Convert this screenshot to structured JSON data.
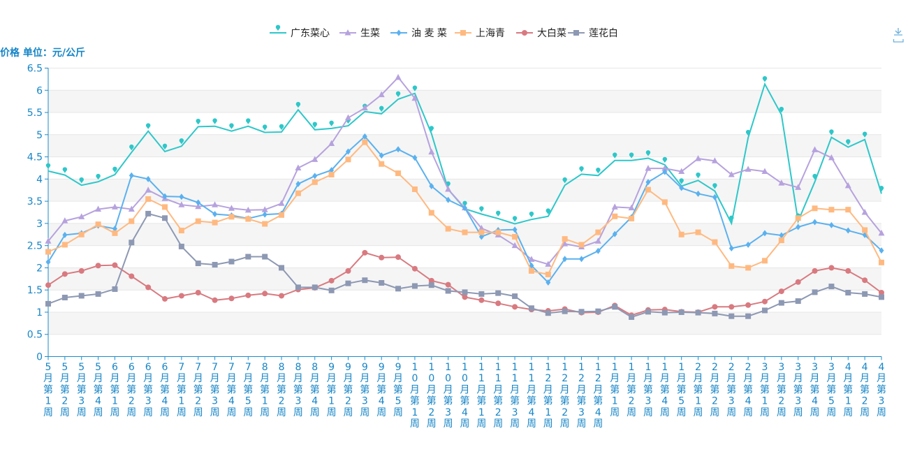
{
  "chart_data": {
    "type": "line",
    "y_unit_label": "价格 单位：元/公斤",
    "ylim": [
      0,
      6.5
    ],
    "yticks": [
      "0",
      "0.5",
      "1",
      "1.5",
      "2",
      "2.5",
      "3",
      "3.5",
      "4",
      "4.5",
      "5",
      "5.5",
      "6",
      "6.5"
    ],
    "grid": true,
    "legend_position": "top-center",
    "categories": [
      "5月第1周",
      "5月第2周",
      "5月第3周",
      "5月第4周",
      "6月第1周",
      "6月第2周",
      "6月第3周",
      "6月第4周",
      "7月第1周",
      "7月第2周",
      "7月第3周",
      "7月第4周",
      "7月第5周",
      "8月第1周",
      "8月第2周",
      "8月第3周",
      "8月第4周",
      "9月第1周",
      "9月第2周",
      "9月第3周",
      "9月第4周",
      "9月第5周",
      "10月第1周",
      "10月第2周",
      "10月第3周",
      "10月第4周",
      "11月第1周",
      "11月第2周",
      "11月第3周",
      "11月第4周",
      "12月第1周",
      "12月第2周",
      "12月第3周",
      "12月第4周",
      "1月第1周",
      "1月第2周",
      "1月第3周",
      "1月第4周",
      "1月第5周",
      "2月第1周",
      "2月第2周",
      "2月第3周",
      "2月第4周",
      "3月第1周",
      "3月第2周",
      "3月第3周",
      "3月第4周",
      "3月第5周",
      "4月第1周",
      "4月第2周",
      "4月第3周"
    ],
    "series": [
      {
        "name": "广东菜心",
        "color": "#2ec7c9",
        "marker": "pin",
        "values": [
          4.18,
          4.09,
          3.86,
          3.94,
          4.1,
          4.6,
          5.08,
          4.62,
          4.74,
          5.18,
          5.19,
          5.08,
          5.19,
          5.05,
          5.06,
          5.56,
          5.11,
          5.14,
          5.2,
          5.52,
          5.47,
          5.8,
          5.93,
          5.02,
          3.77,
          3.33,
          3.21,
          3.11,
          2.99,
          3.09,
          3.16,
          3.86,
          4.11,
          4.08,
          4.42,
          4.42,
          4.47,
          4.32,
          3.84,
          3.97,
          3.73,
          3.0,
          4.93,
          6.14,
          5.45,
          3.05,
          3.94,
          4.94,
          4.72,
          4.89,
          3.67
        ]
      },
      {
        "name": "生菜",
        "color": "#b6a2de",
        "marker": "triangle",
        "values": [
          2.6,
          3.06,
          3.15,
          3.32,
          3.37,
          3.32,
          3.75,
          3.56,
          3.42,
          3.38,
          3.42,
          3.34,
          3.3,
          3.31,
          3.45,
          4.25,
          4.44,
          4.8,
          5.38,
          5.6,
          5.9,
          6.29,
          5.82,
          4.61,
          3.77,
          3.35,
          2.89,
          2.74,
          2.5,
          2.19,
          2.08,
          2.54,
          2.47,
          2.6,
          3.37,
          3.35,
          4.24,
          4.24,
          4.17,
          4.46,
          4.41,
          4.1,
          4.22,
          4.17,
          3.91,
          3.81,
          4.66,
          4.48,
          3.85,
          3.25,
          2.78
        ]
      },
      {
        "name": "油 麦 菜",
        "color": "#5ab1ef",
        "marker": "diamond",
        "values": [
          2.13,
          2.74,
          2.78,
          2.95,
          2.88,
          4.08,
          4.0,
          3.61,
          3.6,
          3.47,
          3.21,
          3.18,
          3.11,
          3.2,
          3.22,
          3.89,
          4.07,
          4.2,
          4.62,
          4.96,
          4.53,
          4.67,
          4.48,
          3.84,
          3.53,
          3.35,
          2.7,
          2.85,
          2.86,
          2.05,
          1.67,
          2.2,
          2.2,
          2.38,
          2.76,
          3.14,
          3.93,
          4.16,
          3.8,
          3.67,
          3.59,
          2.44,
          2.52,
          2.78,
          2.73,
          2.92,
          3.03,
          2.96,
          2.84,
          2.74,
          2.39
        ]
      },
      {
        "name": "上海青",
        "color": "#ffb980",
        "marker": "square",
        "values": [
          2.36,
          2.52,
          2.75,
          2.98,
          2.78,
          3.05,
          3.55,
          3.37,
          2.84,
          3.05,
          3.02,
          3.15,
          3.1,
          2.99,
          3.19,
          3.68,
          3.93,
          4.1,
          4.44,
          4.83,
          4.34,
          4.13,
          3.77,
          3.24,
          2.88,
          2.8,
          2.8,
          2.8,
          2.7,
          1.93,
          1.85,
          2.65,
          2.52,
          2.8,
          3.16,
          3.11,
          3.76,
          3.48,
          2.75,
          2.8,
          2.58,
          2.04,
          2.0,
          2.16,
          2.62,
          3.12,
          3.34,
          3.31,
          3.31,
          2.85,
          2.12
        ]
      },
      {
        "name": "大白菜",
        "color": "#d87a80",
        "marker": "circle",
        "values": [
          1.61,
          1.86,
          1.93,
          2.05,
          2.06,
          1.81,
          1.56,
          1.3,
          1.37,
          1.44,
          1.27,
          1.31,
          1.38,
          1.42,
          1.37,
          1.51,
          1.55,
          1.71,
          1.93,
          2.34,
          2.23,
          2.24,
          1.98,
          1.71,
          1.62,
          1.34,
          1.27,
          1.2,
          1.12,
          1.06,
          1.03,
          1.07,
          0.99,
          1.0,
          1.15,
          0.93,
          1.05,
          1.06,
          1.01,
          1.0,
          1.12,
          1.12,
          1.16,
          1.24,
          1.47,
          1.68,
          1.93,
          2.0,
          1.93,
          1.72,
          1.44
        ]
      },
      {
        "name": "莲花白",
        "color": "#8d98b3",
        "marker": "square",
        "values": [
          1.19,
          1.33,
          1.37,
          1.41,
          1.52,
          2.57,
          3.22,
          3.12,
          2.48,
          2.1,
          2.07,
          2.14,
          2.25,
          2.25,
          2.0,
          1.56,
          1.56,
          1.49,
          1.65,
          1.72,
          1.66,
          1.53,
          1.59,
          1.61,
          1.48,
          1.45,
          1.41,
          1.43,
          1.36,
          1.09,
          0.98,
          1.02,
          1.01,
          1.02,
          1.12,
          0.89,
          1.01,
          0.99,
          1.0,
          0.99,
          0.97,
          0.91,
          0.91,
          1.04,
          1.21,
          1.25,
          1.45,
          1.58,
          1.44,
          1.41,
          1.34
        ]
      }
    ]
  }
}
